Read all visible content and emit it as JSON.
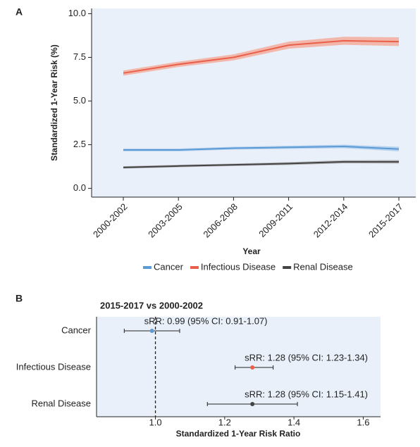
{
  "chart_data": [
    {
      "type": "line",
      "panel": "A",
      "xlabel": "Year",
      "ylabel": "Standardized 1-Year Risk (%)",
      "categories": [
        "2000-2002",
        "2003-2005",
        "2006-2008",
        "2009-2011",
        "2012-2014",
        "2015-2017"
      ],
      "ylim": [
        -0.5,
        10.3
      ],
      "yticks": [
        {
          "value": 0,
          "label": "0.0"
        },
        {
          "value": 2.5,
          "label": "2.5"
        },
        {
          "value": 5,
          "label": "5.0"
        },
        {
          "value": 7.5,
          "label": "7.5"
        },
        {
          "value": 10,
          "label": "10.0"
        }
      ],
      "series": [
        {
          "name": "Cancer",
          "color": "#5b9bd5",
          "band_color": "#a9cbec",
          "values": [
            2.2,
            2.2,
            2.3,
            2.35,
            2.4,
            2.25
          ],
          "lower": [
            2.12,
            2.12,
            2.22,
            2.26,
            2.3,
            2.12
          ],
          "upper": [
            2.28,
            2.28,
            2.38,
            2.44,
            2.5,
            2.38
          ]
        },
        {
          "name": "Infectious Disease",
          "color": "#e8604a",
          "band_color": "#f5a896",
          "values": [
            6.6,
            7.1,
            7.5,
            8.2,
            8.45,
            8.4
          ],
          "lower": [
            6.45,
            6.95,
            7.33,
            8.0,
            8.22,
            8.15
          ],
          "upper": [
            6.75,
            7.25,
            7.67,
            8.4,
            8.68,
            8.65
          ]
        },
        {
          "name": "Renal Disease",
          "color": "#444444",
          "band_color": "#a8a8a8",
          "values": [
            1.2,
            1.28,
            1.35,
            1.42,
            1.52,
            1.52
          ],
          "lower": [
            1.13,
            1.21,
            1.28,
            1.34,
            1.43,
            1.42
          ],
          "upper": [
            1.27,
            1.35,
            1.42,
            1.5,
            1.61,
            1.62
          ]
        }
      ]
    },
    {
      "type": "forest",
      "panel": "B",
      "title": "2015-2017 vs 2000-2002",
      "xlabel": "Standardized 1-Year Risk Ratio",
      "categories": [
        "Cancer",
        "Infectious Disease",
        "Renal Disease"
      ],
      "values": [
        0.99,
        1.28,
        1.28
      ],
      "lower": [
        0.91,
        1.23,
        1.15
      ],
      "upper": [
        1.07,
        1.34,
        1.41
      ],
      "value_labels": [
        "sRR: 0.99 (95% CI: 0.91-1.07)",
        "sRR: 1.28 (95% CI: 1.23-1.34)",
        "sRR: 1.28 (95% CI: 1.15-1.41)"
      ],
      "colors": [
        "#5b9bd5",
        "#e8604a",
        "#444444"
      ],
      "reference": 1,
      "xlim": [
        0.83,
        1.65
      ],
      "xticks": [
        {
          "value": 1,
          "label": "1.0"
        },
        1.2,
        1.4,
        1.6
      ]
    }
  ]
}
